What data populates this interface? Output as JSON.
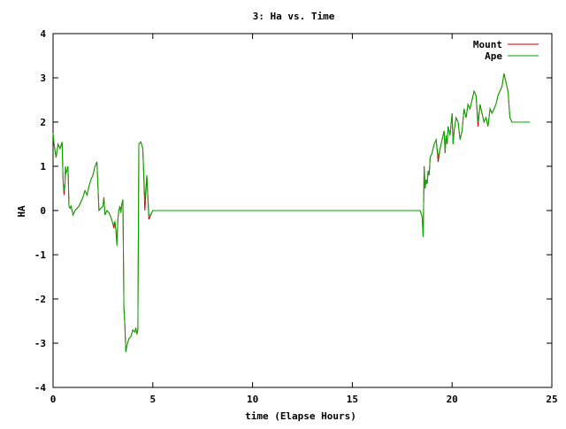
{
  "chart_data": {
    "type": "line",
    "title": "3: Ha vs. Time",
    "xlabel": "time (Elapse Hours)",
    "ylabel": "HA",
    "xlim": [
      0,
      25
    ],
    "ylim": [
      -4,
      4
    ],
    "xticks": [
      0,
      5,
      10,
      15,
      20,
      25
    ],
    "yticks": [
      -4,
      -3,
      -2,
      -1,
      0,
      1,
      2,
      3,
      4
    ],
    "legend_position": "top-right",
    "grid": false,
    "series": [
      {
        "name": "Mount",
        "color": "#cc0000",
        "x": [
          0.0,
          0.05,
          0.15,
          0.25,
          0.35,
          0.45,
          0.5,
          0.55,
          0.6,
          0.62,
          0.65,
          0.7,
          0.75,
          0.8,
          0.85,
          0.9,
          1.0,
          1.1,
          1.2,
          1.3,
          1.4,
          1.5,
          1.6,
          1.7,
          1.8,
          1.9,
          2.0,
          2.1,
          2.2,
          2.3,
          2.4,
          2.5,
          2.55,
          2.6,
          2.7,
          2.8,
          2.9,
          3.0,
          3.05,
          3.1,
          3.15,
          3.2,
          3.25,
          3.3,
          3.35,
          3.4,
          3.45,
          3.5,
          3.55,
          3.6,
          3.65,
          3.7,
          3.8,
          3.9,
          4.0,
          4.1,
          4.15,
          4.2,
          4.25,
          4.3,
          4.4,
          4.5,
          4.6,
          4.7,
          4.8,
          4.9,
          5.0,
          5.05,
          5.1,
          5.15,
          5.2,
          5.25,
          5.3,
          5.35,
          5.4,
          5.5,
          5.6,
          5.7,
          6.0,
          10.0,
          15.0,
          18.4,
          18.5,
          18.55,
          18.6,
          18.65,
          18.7,
          18.75,
          18.8,
          18.85,
          18.9,
          19.0,
          19.1,
          19.2,
          19.3,
          19.4,
          19.5,
          19.6,
          19.65,
          19.7,
          19.75,
          19.8,
          19.9,
          20.0,
          20.05,
          20.1,
          20.2,
          20.3,
          20.4,
          20.5,
          20.6,
          20.7,
          20.8,
          20.9,
          21.0,
          21.1,
          21.2,
          21.3,
          21.4,
          21.5,
          21.6,
          21.7,
          21.8,
          21.9,
          22.0,
          22.1,
          22.2,
          22.25,
          22.3,
          22.4,
          22.5,
          22.6,
          22.7,
          22.8,
          22.9,
          23.0,
          23.1,
          23.2,
          23.3,
          23.4,
          23.5,
          23.6,
          23.65,
          23.7,
          23.75,
          23.8,
          23.85,
          23.9
        ],
        "y": [
          1.75,
          1.5,
          1.2,
          1.5,
          1.4,
          1.55,
          0.7,
          0.35,
          0.6,
          1.0,
          0.85,
          0.9,
          1.0,
          0.1,
          0.05,
          0.1,
          -0.1,
          0.0,
          0.05,
          0.1,
          0.2,
          0.3,
          0.45,
          0.35,
          0.55,
          0.7,
          0.8,
          1.0,
          1.1,
          0.0,
          0.05,
          0.1,
          0.3,
          -0.1,
          0.0,
          -0.05,
          -0.15,
          -0.3,
          -0.4,
          -0.25,
          -0.45,
          -0.75,
          -0.2,
          0.0,
          0.1,
          -0.05,
          0.15,
          0.25,
          -2.2,
          -2.6,
          -3.2,
          -3.05,
          -2.9,
          -2.85,
          -2.7,
          -2.75,
          -2.65,
          -2.8,
          -2.7,
          1.5,
          1.55,
          1.4,
          0.0,
          0.8,
          -0.2,
          -0.1,
          0.0,
          0.0,
          0.0,
          0.0,
          0.0,
          0.0,
          0.0,
          0.0,
          0.0,
          0.0,
          0.0,
          0.0,
          0.0,
          0.0,
          0.0,
          0.0,
          -0.15,
          -0.6,
          1.0,
          0.5,
          0.7,
          0.6,
          0.9,
          0.8,
          1.2,
          1.3,
          1.5,
          1.6,
          1.1,
          1.4,
          1.6,
          1.8,
          1.3,
          1.7,
          1.5,
          1.9,
          1.7,
          2.2,
          1.5,
          1.8,
          2.1,
          2.0,
          1.6,
          1.8,
          2.3,
          2.1,
          2.4,
          2.3,
          2.5,
          2.7,
          2.6,
          1.9,
          2.4,
          2.2,
          2.0,
          2.1,
          1.9,
          2.3,
          2.2,
          2.3,
          2.4,
          2.5,
          2.6,
          2.7,
          2.8,
          3.1,
          2.9,
          2.7,
          2.1,
          2.0,
          2.0,
          2.0,
          2.0,
          2.0,
          2.0,
          2.0,
          2.0,
          2.0,
          2.0,
          2.0,
          2.0,
          2.0
        ]
      },
      {
        "name": "Ape",
        "color": "#00aa00",
        "x": [
          0.0,
          0.05,
          0.15,
          0.25,
          0.35,
          0.45,
          0.5,
          0.55,
          0.6,
          0.62,
          0.65,
          0.7,
          0.75,
          0.8,
          0.85,
          0.9,
          1.0,
          1.1,
          1.2,
          1.3,
          1.4,
          1.5,
          1.6,
          1.7,
          1.8,
          1.9,
          2.0,
          2.1,
          2.2,
          2.3,
          2.4,
          2.5,
          2.55,
          2.6,
          2.7,
          2.8,
          2.9,
          3.0,
          3.05,
          3.1,
          3.15,
          3.2,
          3.25,
          3.3,
          3.35,
          3.4,
          3.45,
          3.5,
          3.55,
          3.6,
          3.65,
          3.7,
          3.8,
          3.9,
          4.0,
          4.1,
          4.15,
          4.2,
          4.25,
          4.3,
          4.4,
          4.5,
          4.6,
          4.7,
          4.8,
          4.9,
          5.0,
          5.05,
          5.1,
          5.15,
          5.2,
          5.25,
          5.3,
          5.35,
          5.4,
          5.5,
          5.6,
          5.7,
          6.0,
          10.0,
          15.0,
          18.4,
          18.5,
          18.55,
          18.6,
          18.65,
          18.7,
          18.75,
          18.8,
          18.85,
          18.9,
          19.0,
          19.1,
          19.2,
          19.3,
          19.4,
          19.5,
          19.6,
          19.65,
          19.7,
          19.75,
          19.8,
          19.9,
          20.0,
          20.05,
          20.1,
          20.2,
          20.3,
          20.4,
          20.5,
          20.6,
          20.7,
          20.8,
          20.9,
          21.0,
          21.1,
          21.2,
          21.3,
          21.4,
          21.5,
          21.6,
          21.7,
          21.8,
          21.9,
          22.0,
          22.1,
          22.2,
          22.25,
          22.3,
          22.4,
          22.5,
          22.6,
          22.7,
          22.8,
          22.9,
          23.0,
          23.1,
          23.2,
          23.3,
          23.4,
          23.5,
          23.6,
          23.65,
          23.7,
          23.75,
          23.8,
          23.85,
          23.9
        ],
        "y": [
          1.75,
          1.5,
          1.2,
          1.5,
          1.4,
          1.55,
          0.7,
          0.45,
          0.6,
          1.0,
          0.85,
          0.9,
          1.0,
          0.1,
          0.05,
          0.1,
          -0.1,
          0.0,
          0.05,
          0.1,
          0.2,
          0.3,
          0.45,
          0.35,
          0.55,
          0.7,
          0.8,
          1.0,
          1.1,
          0.0,
          0.05,
          0.1,
          0.3,
          -0.1,
          0.0,
          -0.05,
          -0.15,
          -0.3,
          -0.3,
          -0.25,
          -0.45,
          -0.8,
          -0.2,
          0.0,
          0.1,
          -0.05,
          0.15,
          0.25,
          -2.2,
          -2.6,
          -3.2,
          -3.05,
          -2.9,
          -2.85,
          -2.7,
          -2.75,
          -2.65,
          -2.8,
          -2.7,
          1.5,
          1.55,
          1.4,
          0.2,
          0.8,
          -0.1,
          -0.1,
          0.0,
          0.0,
          0.0,
          0.0,
          0.0,
          0.0,
          0.0,
          0.0,
          0.0,
          0.0,
          0.0,
          0.0,
          0.0,
          0.0,
          0.0,
          0.0,
          -0.15,
          -0.6,
          1.0,
          0.5,
          0.7,
          0.6,
          0.9,
          0.8,
          1.2,
          1.3,
          1.5,
          1.6,
          1.2,
          1.4,
          1.6,
          1.8,
          1.3,
          1.7,
          1.5,
          1.9,
          1.7,
          2.2,
          1.5,
          1.8,
          2.1,
          2.0,
          1.6,
          1.8,
          2.3,
          2.1,
          2.4,
          2.3,
          2.5,
          2.7,
          2.6,
          2.0,
          2.4,
          2.2,
          2.0,
          2.1,
          1.9,
          2.3,
          2.2,
          2.3,
          2.4,
          2.5,
          2.6,
          2.7,
          2.8,
          3.1,
          2.9,
          2.7,
          2.1,
          2.0,
          2.0,
          2.0,
          2.0,
          2.0,
          2.0,
          2.0,
          2.0,
          2.0,
          2.0,
          2.0,
          2.0,
          2.0
        ]
      }
    ]
  }
}
